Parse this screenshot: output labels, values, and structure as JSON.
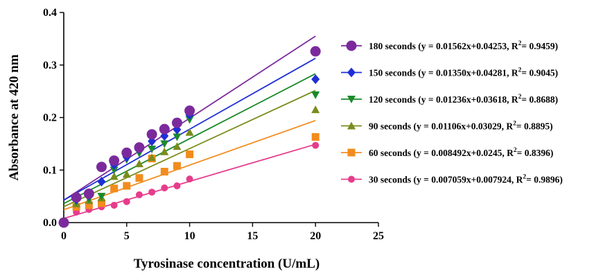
{
  "chart_data": {
    "type": "scatter",
    "xlabel": "Tyrosinase concentration (U/mL)",
    "ylabel": "Absorbance at 420 nm",
    "xlim": [
      0,
      25
    ],
    "ylim": [
      0,
      0.4
    ],
    "x_ticks": [
      "0",
      "5",
      "10",
      "15",
      "20",
      "25"
    ],
    "y_ticks": [
      "0.0",
      "0.1",
      "0.2",
      "0.3",
      "0.4"
    ],
    "grid": false,
    "legend_position": "right",
    "series": [
      {
        "name": "180 seconds",
        "equation": "(y = 0.01562x+0.04253, R",
        "r2": "= 0.9459)",
        "color": "#7b2a9c",
        "marker": "circle",
        "slope": 0.01562,
        "intercept": 0.04253,
        "points": [
          [
            0,
            0.0
          ],
          [
            1,
            0.048
          ],
          [
            2,
            0.055
          ],
          [
            3,
            0.106
          ],
          [
            4,
            0.118
          ],
          [
            5,
            0.133
          ],
          [
            6,
            0.143
          ],
          [
            7,
            0.168
          ],
          [
            8,
            0.178
          ],
          [
            9,
            0.19
          ],
          [
            10,
            0.213
          ],
          [
            20,
            0.326
          ]
        ]
      },
      {
        "name": "150 seconds",
        "equation": "(y = 0.01350x+0.04281, R",
        "r2": "= 0.9045)",
        "color": "#1f2fd6",
        "marker": "diamond",
        "slope": 0.0135,
        "intercept": 0.04281,
        "points": [
          [
            0,
            0.0
          ],
          [
            1,
            0.044
          ],
          [
            2,
            0.052
          ],
          [
            3,
            0.078
          ],
          [
            4,
            0.11
          ],
          [
            5,
            0.125
          ],
          [
            6,
            0.14
          ],
          [
            7,
            0.155
          ],
          [
            8,
            0.165
          ],
          [
            9,
            0.177
          ],
          [
            10,
            0.205
          ],
          [
            20,
            0.273
          ]
        ]
      },
      {
        "name": "120 seconds",
        "equation": "(y = 0.01236x+0.03618, R",
        "r2": "= 0.8688)",
        "color": "#1a8a2a",
        "marker": "triangle-down",
        "slope": 0.01236,
        "intercept": 0.03618,
        "points": [
          [
            0,
            0.0
          ],
          [
            1,
            0.04
          ],
          [
            2,
            0.045
          ],
          [
            3,
            0.05
          ],
          [
            4,
            0.1
          ],
          [
            5,
            0.12
          ],
          [
            6,
            0.132
          ],
          [
            7,
            0.14
          ],
          [
            8,
            0.15
          ],
          [
            9,
            0.163
          ],
          [
            10,
            0.196
          ],
          [
            20,
            0.243
          ]
        ]
      },
      {
        "name": "90 seconds",
        "equation": "(y = 0.01106x+0.03029, R",
        "r2": "= 0.8895)",
        "color": "#7a8c1c",
        "marker": "triangle-up",
        "slope": 0.01106,
        "intercept": 0.03029,
        "points": [
          [
            0,
            0.0
          ],
          [
            1,
            0.036
          ],
          [
            2,
            0.042
          ],
          [
            3,
            0.047
          ],
          [
            4,
            0.088
          ],
          [
            5,
            0.092
          ],
          [
            6,
            0.112
          ],
          [
            7,
            0.124
          ],
          [
            8,
            0.135
          ],
          [
            9,
            0.145
          ],
          [
            10,
            0.172
          ],
          [
            20,
            0.215
          ]
        ]
      },
      {
        "name": "60 seconds",
        "equation": "(y = 0.008492x+0.0245, R",
        "r2": "= 0.8396)",
        "color": "#f28c1e",
        "marker": "square",
        "slope": 0.008492,
        "intercept": 0.0245,
        "points": [
          [
            0,
            0.0
          ],
          [
            1,
            0.03
          ],
          [
            2,
            0.033
          ],
          [
            3,
            0.037
          ],
          [
            4,
            0.065
          ],
          [
            5,
            0.07
          ],
          [
            6,
            0.085
          ],
          [
            7,
            0.122
          ],
          [
            8,
            0.097
          ],
          [
            9,
            0.108
          ],
          [
            10,
            0.13
          ],
          [
            20,
            0.163
          ]
        ]
      },
      {
        "name": "30 seconds",
        "equation": "(y = 0.007059x+0.007924, R",
        "r2": "= 0.9896)",
        "color": "#e63c8c",
        "marker": "circle-small",
        "slope": 0.007059,
        "intercept": 0.007924,
        "points": [
          [
            0,
            0.0
          ],
          [
            1,
            0.02
          ],
          [
            2,
            0.025
          ],
          [
            3,
            0.03
          ],
          [
            4,
            0.033
          ],
          [
            5,
            0.04
          ],
          [
            6,
            0.053
          ],
          [
            7,
            0.058
          ],
          [
            8,
            0.066
          ],
          [
            9,
            0.07
          ],
          [
            10,
            0.083
          ],
          [
            20,
            0.147
          ]
        ]
      }
    ]
  }
}
